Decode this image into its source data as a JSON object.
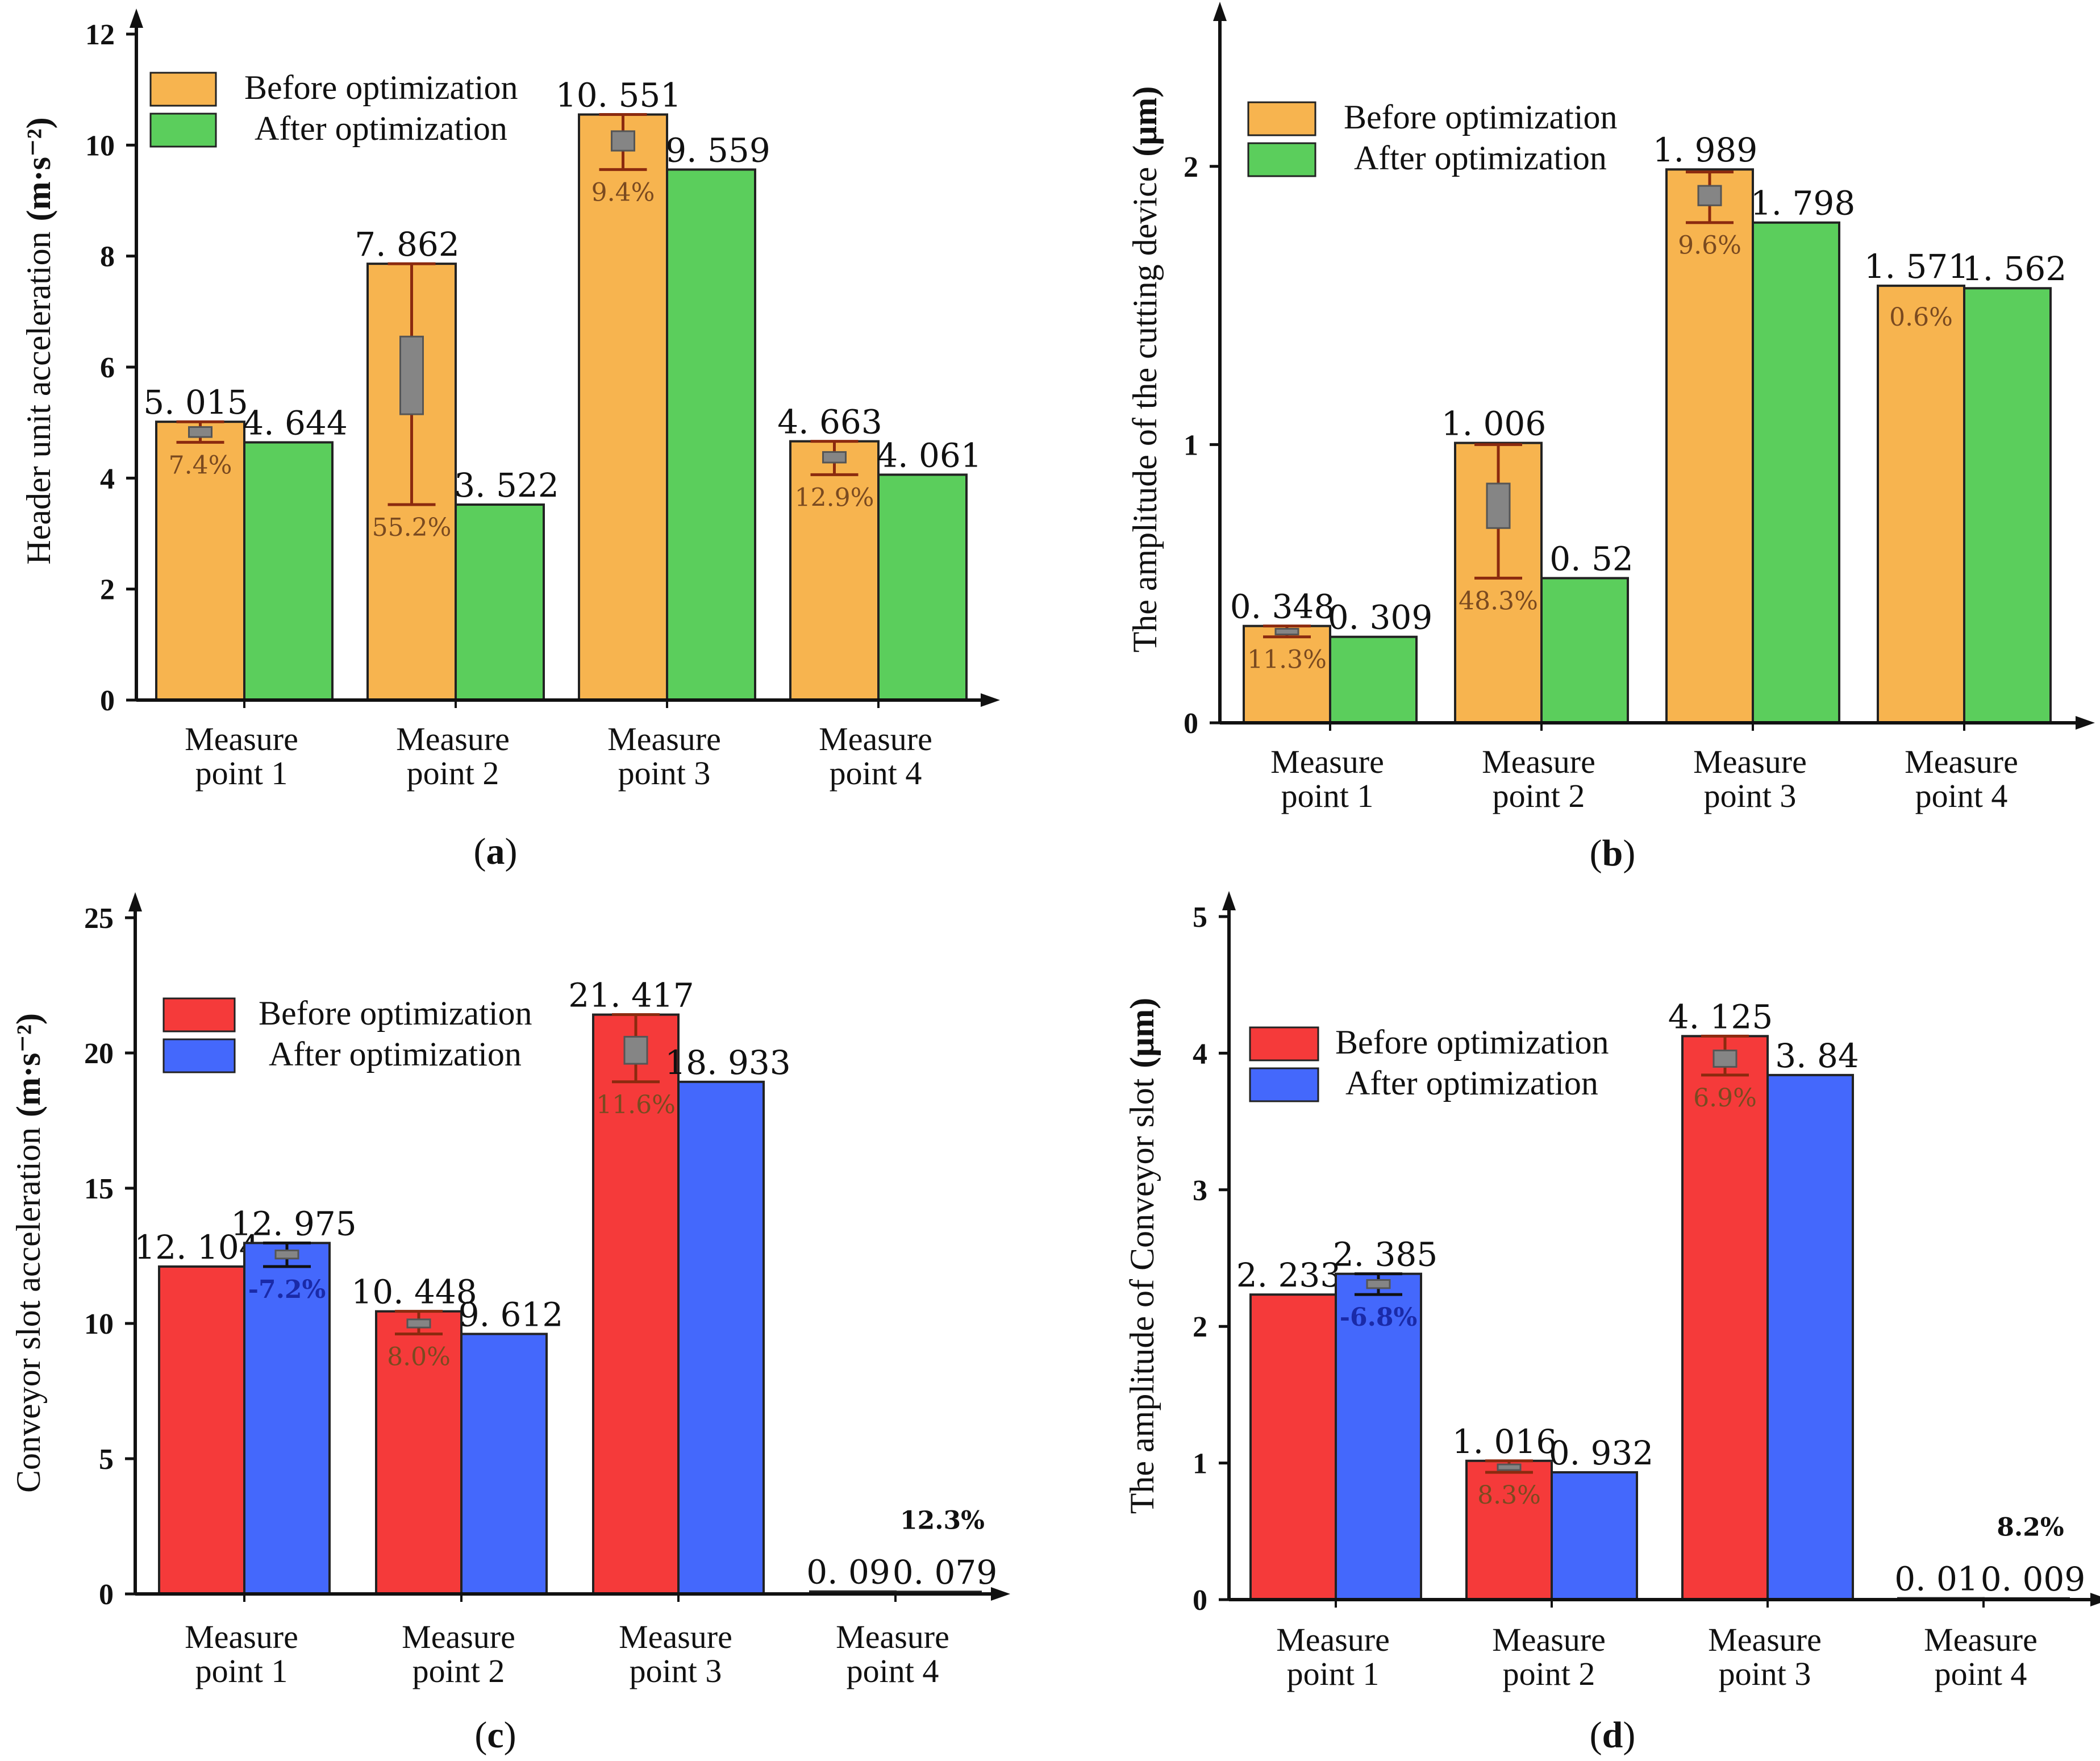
{
  "figure": {
    "panels": [
      "a",
      "b",
      "c",
      "d"
    ]
  },
  "chart_data": [
    {
      "panel": "(a)",
      "panel_letter": "a",
      "type": "bar",
      "categories": [
        [
          "Measure",
          "point 1"
        ],
        [
          "Measure",
          "point 2"
        ],
        [
          "Measure",
          "point 3"
        ],
        [
          "Measure",
          "point 4"
        ]
      ],
      "ylabel": "Header unit acceleration",
      "yunit": "(m·s⁻²)",
      "ylim": [
        0,
        12
      ],
      "yticks": [
        0,
        2,
        4,
        6,
        8,
        10,
        12
      ],
      "series": [
        {
          "name": "Before optimization",
          "color": "#F7B44F",
          "values": [
            5.015,
            7.862,
            10.551,
            4.663
          ],
          "labels": [
            "5. 015",
            "7. 862",
            "10. 551",
            "4. 663"
          ]
        },
        {
          "name": "After optimization",
          "color": "#5BCE5C",
          "values": [
            4.644,
            3.522,
            9.559,
            4.061
          ],
          "labels": [
            "4. 644",
            "3. 522",
            "9. 559",
            "4. 061"
          ]
        }
      ],
      "error_markers": [
        {
          "series": 0,
          "index": 0,
          "low": 4.644,
          "high": 5.015,
          "box_low": 4.74,
          "box_high": 4.92,
          "label": "7.4%"
        },
        {
          "series": 0,
          "index": 1,
          "low": 3.522,
          "high": 7.862,
          "box_low": 5.15,
          "box_high": 6.55,
          "label": "55.2%"
        },
        {
          "series": 0,
          "index": 2,
          "low": 9.559,
          "high": 10.551,
          "box_low": 9.9,
          "box_high": 10.25,
          "label": "9.4%"
        },
        {
          "series": 0,
          "index": 3,
          "low": 4.061,
          "high": 4.663,
          "box_low": 4.28,
          "box_high": 4.47,
          "label": "12.9%"
        }
      ]
    },
    {
      "panel": "(b)",
      "panel_letter": "b",
      "type": "bar",
      "categories": [
        [
          "Measure",
          "point 1"
        ],
        [
          "Measure",
          "point 2"
        ],
        [
          "Measure",
          "point 3"
        ],
        [
          "Measure",
          "point 4"
        ]
      ],
      "ylabel": "The amplitude of the cutting device",
      "yunit": "(μm)",
      "ylim": [
        0,
        2.5
      ],
      "yticks": [
        0,
        1,
        2
      ],
      "series": [
        {
          "name": "Before optimization",
          "color": "#F7B44F",
          "values": [
            0.348,
            1.006,
            1.989,
            1.571
          ],
          "labels": [
            "0. 348",
            "1. 006",
            "1. 989",
            "1. 571"
          ]
        },
        {
          "name": "After optimization",
          "color": "#5BCE5C",
          "values": [
            0.309,
            0.52,
            1.798,
            1.562
          ],
          "labels": [
            "0. 309",
            "0. 52",
            "1. 798",
            "1. 562"
          ]
        }
      ],
      "error_markers": [
        {
          "series": 0,
          "index": 0,
          "low": 0.309,
          "high": 0.348,
          "box_low": 0.32,
          "box_high": 0.338,
          "label": "11.3%"
        },
        {
          "series": 0,
          "index": 1,
          "low": 0.52,
          "high": 1.0,
          "box_low": 0.7,
          "box_high": 0.86,
          "label": "48.3%"
        },
        {
          "series": 0,
          "index": 2,
          "low": 1.798,
          "high": 1.98,
          "box_low": 1.86,
          "box_high": 1.93,
          "label": "9.6%"
        },
        {
          "series": 0,
          "index": 3,
          "low": null,
          "high": null,
          "box_low": null,
          "box_high": null,
          "label": "0.6%"
        }
      ]
    },
    {
      "panel": "(c)",
      "panel_letter": "c",
      "type": "bar",
      "categories": [
        [
          "Measure",
          "point 1"
        ],
        [
          "Measure",
          "point 2"
        ],
        [
          "Measure",
          "point 3"
        ],
        [
          "Measure",
          "point 4"
        ]
      ],
      "ylabel": "Conveyor slot acceleration",
      "yunit": "(m·s⁻²)",
      "ylim": [
        0,
        25
      ],
      "yticks": [
        0,
        5,
        10,
        15,
        20,
        25
      ],
      "series": [
        {
          "name": "Before optimization",
          "color": "#F53A3A",
          "values": [
            12.104,
            10.448,
            21.417,
            0.09
          ],
          "labels": [
            "12. 104",
            "10. 448",
            "21. 417",
            "0. 09"
          ]
        },
        {
          "name": "After optimization",
          "color": "#4468FC",
          "values": [
            12.975,
            9.612,
            18.933,
            0.079
          ],
          "labels": [
            "12. 975",
            "9. 612",
            "18. 933",
            "0. 079"
          ]
        }
      ],
      "error_markers": [
        {
          "series": 1,
          "index": 0,
          "low": 12.104,
          "high": 12.975,
          "box_low": 12.4,
          "box_high": 12.7,
          "label": "-7.2%"
        },
        {
          "series": 0,
          "index": 1,
          "low": 9.612,
          "high": 10.448,
          "box_low": 9.85,
          "box_high": 10.15,
          "label": "8.0%"
        },
        {
          "series": 0,
          "index": 2,
          "low": 18.933,
          "high": 21.417,
          "box_low": 19.6,
          "box_high": 20.6,
          "label": "11.6%"
        },
        {
          "series": 0,
          "index": 3,
          "low": null,
          "high": null,
          "box_low": null,
          "box_high": null,
          "label": "12.3%"
        }
      ]
    },
    {
      "panel": "(d)",
      "panel_letter": "d",
      "type": "bar",
      "categories": [
        [
          "Measure",
          "point 1"
        ],
        [
          "Measure",
          "point 2"
        ],
        [
          "Measure",
          "point 3"
        ],
        [
          "Measure",
          "point 4"
        ]
      ],
      "ylabel": "The amplitude of Conveyor slot",
      "yunit": "(μm)",
      "ylim": [
        0,
        5
      ],
      "yticks": [
        0,
        1,
        2,
        3,
        4,
        5
      ],
      "series": [
        {
          "name": "Before optimization",
          "color": "#F53A3A",
          "values": [
            2.233,
            1.016,
            4.125,
            0.01
          ],
          "labels": [
            "2. 233",
            "1. 016",
            "4. 125",
            "0. 01"
          ]
        },
        {
          "name": "After optimization",
          "color": "#4468FC",
          "values": [
            2.385,
            0.932,
            3.84,
            0.009
          ],
          "labels": [
            "2. 385",
            "0. 932",
            "3. 84",
            "0. 009"
          ]
        }
      ],
      "error_markers": [
        {
          "series": 1,
          "index": 0,
          "low": 2.233,
          "high": 2.385,
          "box_low": 2.28,
          "box_high": 2.34,
          "label": "-6.8%"
        },
        {
          "series": 0,
          "index": 1,
          "low": 0.932,
          "high": 1.016,
          "box_low": 0.95,
          "box_high": 0.99,
          "label": "8.3%"
        },
        {
          "series": 0,
          "index": 2,
          "low": 3.84,
          "high": 4.125,
          "box_low": 3.9,
          "box_high": 4.02,
          "label": "6.9%"
        },
        {
          "series": 0,
          "index": 3,
          "low": null,
          "high": null,
          "box_low": null,
          "box_high": null,
          "label": "8.2%"
        }
      ]
    }
  ]
}
